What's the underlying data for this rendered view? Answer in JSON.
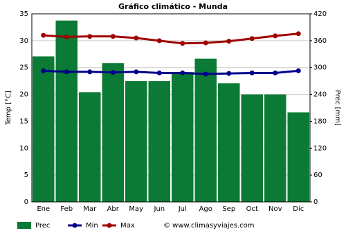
{
  "chart_data": {
    "type": "combo",
    "title": "Gráfico climático - Munda",
    "categories": [
      "Ene",
      "Feb",
      "Mar",
      "Abr",
      "May",
      "Jun",
      "Jul",
      "Ago",
      "Sep",
      "Oct",
      "Nov",
      "Dic"
    ],
    "y_label": "Temp [°C]",
    "y2_label": "Prec [mm]",
    "ylim": [
      0,
      35
    ],
    "yticks": [
      0,
      5,
      10,
      15,
      20,
      25,
      30,
      35
    ],
    "y2lim": [
      0,
      420
    ],
    "y2ticks": [
      0,
      60,
      120,
      180,
      240,
      300,
      360,
      420
    ],
    "grid": true,
    "series": [
      {
        "name": "Prec",
        "type": "bar",
        "axis": "y2",
        "color": "#0b7a35",
        "values": [
          325,
          405,
          245,
          310,
          270,
          270,
          290,
          320,
          265,
          240,
          240,
          200
        ]
      },
      {
        "name": "Min",
        "type": "line",
        "color": "#00008b",
        "values": [
          24.4,
          24.2,
          24.2,
          24.1,
          24.2,
          24.0,
          24.0,
          23.8,
          23.9,
          24.0,
          24.0,
          24.4
        ]
      },
      {
        "name": "Max",
        "type": "line",
        "color": "#a00000",
        "values": [
          31.0,
          30.7,
          30.8,
          30.8,
          30.5,
          30.0,
          29.5,
          29.6,
          29.9,
          30.4,
          30.9,
          31.3
        ]
      }
    ],
    "watermark": "© www.climasyviajes.com"
  }
}
